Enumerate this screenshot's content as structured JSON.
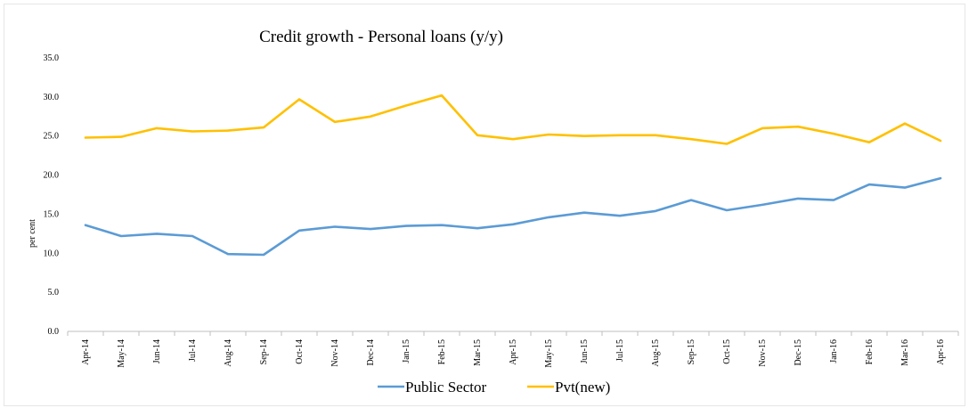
{
  "chart_data": {
    "type": "line",
    "title": "Credit growth - Personal loans (y/y)",
    "xlabel": "",
    "ylabel": "per cent",
    "ylim": [
      0,
      35
    ],
    "yticks": [
      "0.0",
      "5.0",
      "10.0",
      "15.0",
      "20.0",
      "25.0",
      "30.0",
      "35.0"
    ],
    "grid": false,
    "legend_position": "bottom",
    "categories": [
      "Apr-14",
      "May-14",
      "Jun-14",
      "Jul-14",
      "Aug-14",
      "Sep-14",
      "Oct-14",
      "Nov-14",
      "Dec-14",
      "Jan-15",
      "Feb-15",
      "Mar-15",
      "Apr-15",
      "May-15",
      "Jun-15",
      "Jul-15",
      "Aug-15",
      "Sep-15",
      "Oct-15",
      "Nov-15",
      "Dec-15",
      "Jan-16",
      "Feb-16",
      "Mar-16",
      "Apr-16"
    ],
    "series": [
      {
        "name": "Public Sector",
        "color": "#5b9bd5",
        "values": [
          13.6,
          12.2,
          12.5,
          12.2,
          9.9,
          9.8,
          12.9,
          13.4,
          13.1,
          13.5,
          13.6,
          13.2,
          13.7,
          14.6,
          15.2,
          14.8,
          15.4,
          16.8,
          15.5,
          16.2,
          17.0,
          16.8,
          18.8,
          18.4,
          19.6
        ]
      },
      {
        "name": "Pvt(new)",
        "color": "#ffc000",
        "values": [
          24.8,
          24.9,
          26.0,
          25.6,
          25.7,
          26.1,
          29.7,
          26.8,
          27.5,
          28.9,
          30.2,
          25.1,
          24.6,
          25.2,
          25.0,
          25.1,
          25.1,
          24.6,
          24.0,
          26.0,
          26.2,
          25.3,
          24.2,
          26.6,
          24.4
        ]
      }
    ]
  }
}
